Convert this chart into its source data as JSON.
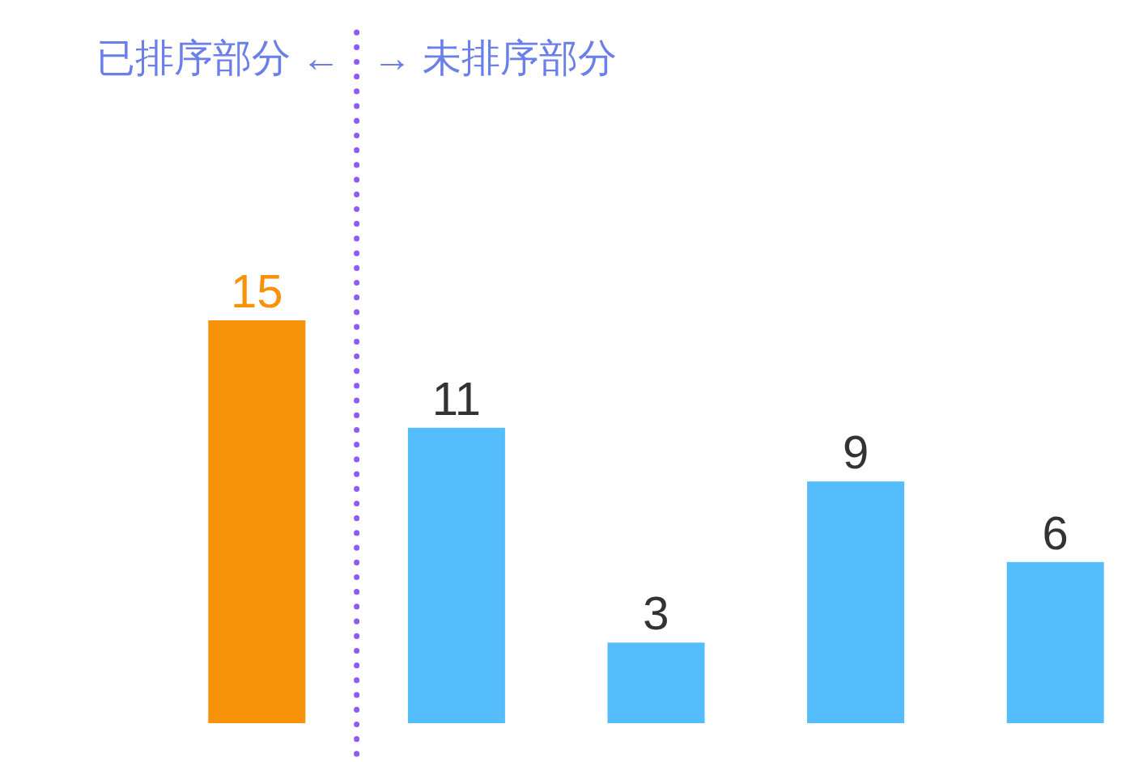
{
  "chart_data": {
    "type": "bar",
    "categories": [
      null,
      null,
      null,
      null,
      null
    ],
    "values": [
      15,
      11,
      3,
      9,
      6
    ],
    "colors": [
      "#f7920a",
      "#55bdfb",
      "#55bdfb",
      "#55bdfb",
      "#55bdfb"
    ],
    "data_labels": true,
    "annotations": [
      "已排序部分 ←",
      "→ 未排序部分"
    ]
  }
}
